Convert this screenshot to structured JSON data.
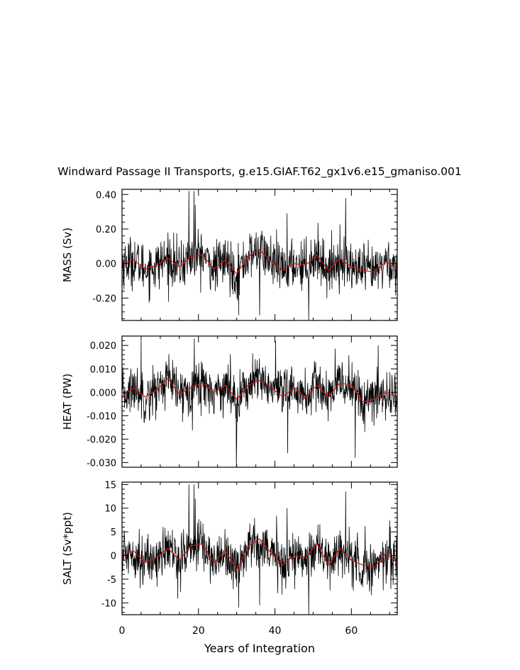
{
  "title": "Windward Passage II Transports, g.e15.GIAF.T62_gx1v6.e15_gmaniso.001",
  "xlabel": "Years of Integration",
  "x_ticks": [
    "0",
    "20",
    "40",
    "60"
  ],
  "colors": {
    "raw": "#000000",
    "smooth": "#d21414",
    "axes": "#000000"
  },
  "chart_data": [
    {
      "type": "line",
      "ylabel": "MASS (Sv)",
      "xlim": [
        0,
        72
      ],
      "ylim": [
        -0.33,
        0.43
      ],
      "y_ticks": [
        0.4,
        0.2,
        0.0,
        -0.2
      ],
      "y_tick_labels": [
        "0.40",
        "0.20",
        "0.00",
        "-0.20"
      ],
      "series": [
        {
          "values_note": "monthly transport, approx. std 0.09 Sv, spikes to 0.42 near year 18-19",
          "x": [
            0,
            72
          ]
        },
        {
          "values_note": "smoothed mean"
        }
      ],
      "x": [
        0,
        3,
        6,
        9,
        12,
        15,
        18,
        21,
        24,
        27,
        30,
        33,
        36,
        39,
        42,
        45,
        48,
        51,
        54,
        57,
        60,
        63,
        66,
        69,
        72
      ],
      "smooth": [
        0.0,
        0.02,
        -0.03,
        -0.01,
        0.03,
        -0.02,
        0.04,
        0.05,
        -0.03,
        0.02,
        -0.06,
        0.04,
        0.08,
        0.01,
        -0.04,
        0.0,
        -0.01,
        0.05,
        -0.04,
        0.03,
        -0.02,
        -0.04,
        -0.05,
        0.01,
        -0.03
      ],
      "spikes": [
        [
          17.5,
          0.42
        ],
        [
          18.8,
          0.42
        ],
        [
          19.2,
          0.34
        ],
        [
          58.5,
          0.38
        ],
        [
          43.2,
          0.29
        ],
        [
          48.8,
          -0.33
        ],
        [
          30.5,
          -0.3
        ],
        [
          36.0,
          -0.3
        ]
      ]
    },
    {
      "type": "line",
      "ylabel": "HEAT (PW)",
      "xlim": [
        0,
        72
      ],
      "ylim": [
        -0.032,
        0.024
      ],
      "y_ticks": [
        0.02,
        0.01,
        0.0,
        -0.01,
        -0.02,
        -0.03
      ],
      "y_tick_labels": [
        "0.020",
        "0.010",
        "0.000",
        "-0.010",
        "-0.020",
        "-0.030"
      ],
      "x": [
        0,
        3,
        6,
        9,
        12,
        15,
        18,
        21,
        24,
        27,
        30,
        33,
        36,
        39,
        42,
        45,
        48,
        51,
        54,
        57,
        60,
        63,
        66,
        69,
        72
      ],
      "smooth": [
        -0.002,
        0.002,
        -0.002,
        0.001,
        0.006,
        -0.001,
        0.002,
        0.004,
        0.0,
        0.003,
        -0.003,
        0.003,
        0.005,
        0.002,
        -0.002,
        0.002,
        -0.002,
        0.003,
        -0.002,
        0.004,
        0.003,
        -0.004,
        -0.003,
        0.0,
        -0.002
      ],
      "spikes": [
        [
          5.0,
          0.023
        ],
        [
          18.9,
          0.023
        ],
        [
          29.9,
          -0.032
        ],
        [
          40.2,
          0.022
        ],
        [
          43.3,
          -0.026
        ],
        [
          61.0,
          -0.028
        ],
        [
          67.0,
          0.02
        ]
      ]
    },
    {
      "type": "line",
      "ylabel": "SALT (Sv*ppt)",
      "xlim": [
        0,
        72
      ],
      "ylim": [
        -12.5,
        15.5
      ],
      "y_ticks": [
        15,
        10,
        5,
        0,
        -5,
        -10
      ],
      "y_tick_labels": [
        "15",
        "10",
        "5",
        "0",
        "-5",
        "-10"
      ],
      "x": [
        0,
        3,
        6,
        9,
        12,
        15,
        18,
        21,
        24,
        27,
        30,
        33,
        36,
        39,
        42,
        45,
        48,
        51,
        54,
        57,
        60,
        63,
        66,
        69,
        72
      ],
      "smooth": [
        0.0,
        1.0,
        -1.5,
        -0.5,
        1.5,
        -1.0,
        2.0,
        2.5,
        -1.5,
        1.0,
        -3.0,
        2.0,
        3.5,
        0.5,
        -2.0,
        0.0,
        -0.5,
        2.5,
        -2.0,
        1.5,
        -1.0,
        -2.0,
        -2.5,
        0.5,
        -1.5
      ],
      "spikes": [
        [
          17.5,
          15
        ],
        [
          18.8,
          15
        ],
        [
          19.2,
          12
        ],
        [
          58.5,
          13.5
        ],
        [
          43.2,
          10
        ],
        [
          48.8,
          -12.5
        ],
        [
          30.5,
          -11
        ],
        [
          36.0,
          -10.5
        ]
      ]
    }
  ]
}
